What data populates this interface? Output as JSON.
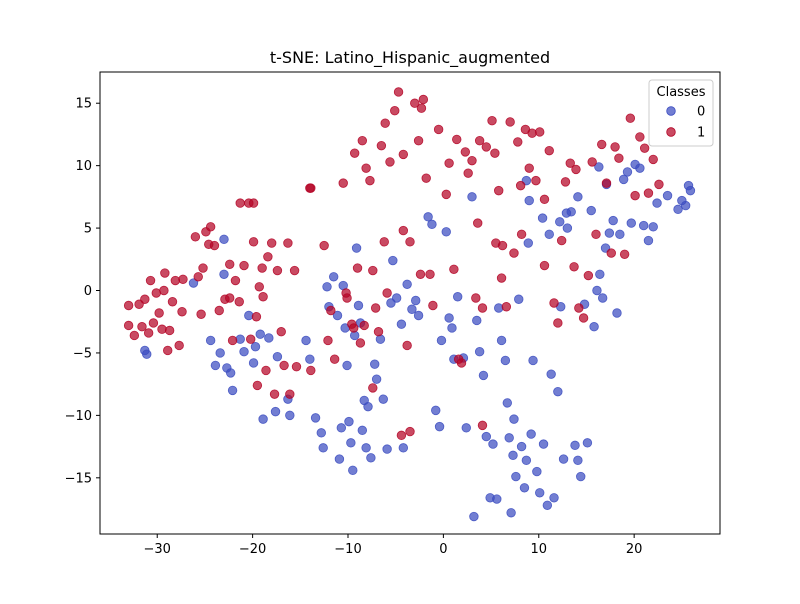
{
  "chart_data": {
    "type": "scatter",
    "title": "t-SNE: Latino_Hispanic_augmented",
    "xlabel": "",
    "ylabel": "",
    "xlim": [
      -36,
      29
    ],
    "ylim": [
      -19.5,
      17.5
    ],
    "xticks": [
      -30,
      -20,
      -10,
      0,
      10,
      20
    ],
    "yticks": [
      -15,
      -10,
      -5,
      0,
      5,
      10,
      15
    ],
    "grid": false,
    "legend": {
      "title": "Classes",
      "placement": "top-right"
    },
    "series": [
      {
        "name": "0",
        "color": "#3b4cc0",
        "points": [
          [
            -31.3,
            -4.8
          ],
          [
            -31.1,
            -5.1
          ],
          [
            -26.2,
            0.6
          ],
          [
            -24.4,
            -4.0
          ],
          [
            -23.9,
            -6.0
          ],
          [
            -23.4,
            -5.0
          ],
          [
            -23.0,
            1.3
          ],
          [
            -22.7,
            -6.2
          ],
          [
            -22.3,
            -6.6
          ],
          [
            -22.1,
            -8.0
          ],
          [
            -23.0,
            4.1
          ],
          [
            -21.3,
            -3.9
          ],
          [
            -20.9,
            -4.9
          ],
          [
            -20.4,
            -2.0
          ],
          [
            -19.9,
            -5.8
          ],
          [
            -19.7,
            -4.5
          ],
          [
            -19.2,
            -3.5
          ],
          [
            -18.9,
            -10.3
          ],
          [
            -18.3,
            -3.8
          ],
          [
            -17.6,
            -9.7
          ],
          [
            -17.4,
            -5.3
          ],
          [
            -16.3,
            -8.7
          ],
          [
            -16.1,
            -10.0
          ],
          [
            -14.4,
            -4.0
          ],
          [
            -14.0,
            -5.5
          ],
          [
            -13.4,
            -10.2
          ],
          [
            -12.8,
            -11.4
          ],
          [
            -12.6,
            -12.6
          ],
          [
            -12.2,
            0.3
          ],
          [
            -12.0,
            -1.3
          ],
          [
            -11.5,
            1.1
          ],
          [
            -11.1,
            -2.0
          ],
          [
            -10.9,
            -13.5
          ],
          [
            -10.7,
            -11.0
          ],
          [
            -10.5,
            0.4
          ],
          [
            -10.3,
            -3.0
          ],
          [
            -10.1,
            -6.0
          ],
          [
            -9.9,
            -10.5
          ],
          [
            -9.7,
            -12.2
          ],
          [
            -9.5,
            -14.4
          ],
          [
            -9.3,
            -3.6
          ],
          [
            -9.1,
            3.4
          ],
          [
            -8.9,
            -1.2
          ],
          [
            -8.7,
            -2.6
          ],
          [
            -8.5,
            -11.2
          ],
          [
            -8.3,
            -8.8
          ],
          [
            -8.1,
            -12.6
          ],
          [
            -7.9,
            -9.3
          ],
          [
            -7.6,
            -13.4
          ],
          [
            -7.2,
            -5.9
          ],
          [
            -7.0,
            -7.1
          ],
          [
            -6.6,
            -3.9
          ],
          [
            -6.3,
            -8.7
          ],
          [
            -5.9,
            -12.7
          ],
          [
            -5.5,
            -1.0
          ],
          [
            -5.3,
            2.4
          ],
          [
            -4.9,
            -0.6
          ],
          [
            -4.4,
            -2.7
          ],
          [
            -4.2,
            -12.6
          ],
          [
            -3.8,
            0.5
          ],
          [
            -3.3,
            -1.5
          ],
          [
            -2.9,
            -0.8
          ],
          [
            -2.6,
            -2.0
          ],
          [
            -1.6,
            5.9
          ],
          [
            -1.2,
            5.3
          ],
          [
            -0.8,
            -9.6
          ],
          [
            -0.4,
            -10.9
          ],
          [
            -0.2,
            -4.0
          ],
          [
            0.3,
            4.7
          ],
          [
            0.6,
            -2.2
          ],
          [
            0.9,
            -3.0
          ],
          [
            1.1,
            -5.5
          ],
          [
            1.5,
            -0.5
          ],
          [
            2.1,
            -5.4
          ],
          [
            2.4,
            -11.0
          ],
          [
            3.0,
            7.5
          ],
          [
            3.2,
            -18.1
          ],
          [
            3.5,
            -2.4
          ],
          [
            3.8,
            -4.9
          ],
          [
            4.2,
            -6.8
          ],
          [
            4.5,
            -11.7
          ],
          [
            4.9,
            -16.6
          ],
          [
            5.2,
            -12.3
          ],
          [
            5.6,
            -16.7
          ],
          [
            5.8,
            -1.4
          ],
          [
            6.1,
            -4.0
          ],
          [
            6.5,
            -5.6
          ],
          [
            6.9,
            -11.8
          ],
          [
            7.1,
            -17.8
          ],
          [
            7.3,
            -13.2
          ],
          [
            7.6,
            -14.9
          ],
          [
            7.9,
            -0.7
          ],
          [
            8.2,
            -12.5
          ],
          [
            8.5,
            -15.8
          ],
          [
            8.7,
            -13.6
          ],
          [
            8.9,
            3.8
          ],
          [
            9.2,
            -11.5
          ],
          [
            9.4,
            -5.6
          ],
          [
            9.8,
            -14.5
          ],
          [
            10.1,
            -16.2
          ],
          [
            10.5,
            -12.3
          ],
          [
            10.9,
            -17.2
          ],
          [
            11.3,
            -6.7
          ],
          [
            11.6,
            -16.6
          ],
          [
            12.0,
            -8.1
          ],
          [
            12.3,
            -1.3
          ],
          [
            12.6,
            -13.5
          ],
          [
            13.0,
            5.0
          ],
          [
            13.4,
            6.3
          ],
          [
            13.8,
            -12.4
          ],
          [
            14.1,
            -13.6
          ],
          [
            14.4,
            -14.9
          ],
          [
            14.8,
            -1.1
          ],
          [
            15.1,
            -12.2
          ],
          [
            15.5,
            6.4
          ],
          [
            15.8,
            -2.9
          ],
          [
            16.1,
            0.0
          ],
          [
            16.4,
            1.3
          ],
          [
            16.7,
            -0.6
          ],
          [
            17.0,
            3.4
          ],
          [
            17.4,
            4.6
          ],
          [
            17.8,
            5.6
          ],
          [
            18.2,
            -1.8
          ],
          [
            18.5,
            4.5
          ],
          [
            18.9,
            8.9
          ],
          [
            19.3,
            9.5
          ],
          [
            19.7,
            5.4
          ],
          [
            20.1,
            10.1
          ],
          [
            20.6,
            9.8
          ],
          [
            21.0,
            5.2
          ],
          [
            21.5,
            4.0
          ],
          [
            22.0,
            5.1
          ],
          [
            22.4,
            7.0
          ],
          [
            23.5,
            7.6
          ],
          [
            24.6,
            6.5
          ],
          [
            25.0,
            7.2
          ],
          [
            25.4,
            6.8
          ],
          [
            25.7,
            8.4
          ],
          [
            25.9,
            8.0
          ],
          [
            16.3,
            9.9
          ],
          [
            17.1,
            8.5
          ],
          [
            14.1,
            7.5
          ],
          [
            12.9,
            6.2
          ],
          [
            12.2,
            5.5
          ],
          [
            11.1,
            4.5
          ],
          [
            10.4,
            5.8
          ],
          [
            9.0,
            7.2
          ],
          [
            8.7,
            8.8
          ],
          [
            6.7,
            -9.0
          ],
          [
            7.4,
            -10.3
          ]
        ]
      },
      {
        "name": "1",
        "color": "#b40426",
        "points": [
          [
            -33.0,
            -1.2
          ],
          [
            -33.0,
            -2.8
          ],
          [
            -32.4,
            -3.6
          ],
          [
            -31.9,
            -1.1
          ],
          [
            -31.6,
            -2.9
          ],
          [
            -31.3,
            -0.7
          ],
          [
            -30.9,
            -3.4
          ],
          [
            -30.7,
            0.8
          ],
          [
            -30.4,
            -2.6
          ],
          [
            -30.1,
            -0.2
          ],
          [
            -29.8,
            -1.8
          ],
          [
            -29.5,
            -3.1
          ],
          [
            -29.3,
            0.0
          ],
          [
            -29.2,
            1.4
          ],
          [
            -28.9,
            -4.8
          ],
          [
            -28.4,
            -0.9
          ],
          [
            -28.1,
            0.8
          ],
          [
            -27.7,
            -4.4
          ],
          [
            -27.4,
            -1.7
          ],
          [
            -27.3,
            0.9
          ],
          [
            -26.0,
            4.3
          ],
          [
            -25.4,
            -1.9
          ],
          [
            -25.2,
            1.8
          ],
          [
            -24.9,
            4.7
          ],
          [
            -24.6,
            3.7
          ],
          [
            -24.4,
            5.1
          ],
          [
            -24.0,
            3.6
          ],
          [
            -23.5,
            -1.6
          ],
          [
            -22.9,
            -0.7
          ],
          [
            -22.4,
            -0.6
          ],
          [
            -22.1,
            -4.0
          ],
          [
            -21.8,
            0.8
          ],
          [
            -21.4,
            -0.9
          ],
          [
            -21.3,
            7.0
          ],
          [
            -20.9,
            2.0
          ],
          [
            -20.4,
            7.0
          ],
          [
            -20.2,
            -3.9
          ],
          [
            -19.9,
            7.0
          ],
          [
            -19.9,
            3.9
          ],
          [
            -19.6,
            -2.1
          ],
          [
            -19.5,
            -7.6
          ],
          [
            -19.3,
            0.3
          ],
          [
            -19.0,
            1.8
          ],
          [
            -18.9,
            -0.5
          ],
          [
            -18.6,
            -6.4
          ],
          [
            -18.4,
            2.7
          ],
          [
            -18.0,
            3.8
          ],
          [
            -17.7,
            -8.3
          ],
          [
            -17.4,
            1.6
          ],
          [
            -17.0,
            -3.3
          ],
          [
            -16.7,
            -6.0
          ],
          [
            -16.3,
            3.8
          ],
          [
            -16.1,
            -8.3
          ],
          [
            -15.6,
            1.6
          ],
          [
            -14.0,
            8.2
          ],
          [
            -13.9,
            -6.4
          ],
          [
            -12.5,
            3.6
          ],
          [
            -12.1,
            -4.0
          ],
          [
            -11.4,
            -5.5
          ],
          [
            -10.5,
            8.6
          ],
          [
            -10.1,
            -0.6
          ],
          [
            -9.6,
            -2.7
          ],
          [
            -9.3,
            11.0
          ],
          [
            -9.0,
            1.8
          ],
          [
            -8.7,
            -4.2
          ],
          [
            -8.5,
            12.0
          ],
          [
            -8.3,
            -2.8
          ],
          [
            -8.1,
            9.8
          ],
          [
            -7.7,
            8.8
          ],
          [
            -7.4,
            1.6
          ],
          [
            -7.1,
            -1.4
          ],
          [
            -6.8,
            -3.3
          ],
          [
            -6.5,
            11.6
          ],
          [
            -6.2,
            3.9
          ],
          [
            -5.9,
            -0.2
          ],
          [
            -5.6,
            10.3
          ],
          [
            -5.1,
            14.4
          ],
          [
            -4.7,
            15.9
          ],
          [
            -4.4,
            -11.6
          ],
          [
            -4.2,
            10.9
          ],
          [
            -3.8,
            -4.4
          ],
          [
            -3.5,
            3.9
          ],
          [
            -3.0,
            15.0
          ],
          [
            -2.6,
            12.0
          ],
          [
            -2.3,
            14.6
          ],
          [
            -2.1,
            15.3
          ],
          [
            -1.8,
            9.0
          ],
          [
            -1.4,
            1.3
          ],
          [
            -1.1,
            -1.2
          ],
          [
            -0.5,
            12.9
          ],
          [
            0.6,
            10.2
          ],
          [
            1.1,
            1.7
          ],
          [
            1.4,
            12.1
          ],
          [
            1.9,
            -5.8
          ],
          [
            2.3,
            11.1
          ],
          [
            2.6,
            9.4
          ],
          [
            3.0,
            10.4
          ],
          [
            3.4,
            -0.6
          ],
          [
            3.8,
            12.0
          ],
          [
            4.1,
            -1.4
          ],
          [
            4.5,
            11.5
          ],
          [
            5.1,
            13.6
          ],
          [
            5.5,
            3.8
          ],
          [
            5.8,
            8.0
          ],
          [
            6.1,
            1.0
          ],
          [
            6.6,
            -1.3
          ],
          [
            7.0,
            13.5
          ],
          [
            7.4,
            3.0
          ],
          [
            7.8,
            11.9
          ],
          [
            8.2,
            4.5
          ],
          [
            8.6,
            12.9
          ],
          [
            9.0,
            9.8
          ],
          [
            9.3,
            12.6
          ],
          [
            9.7,
            8.8
          ],
          [
            10.1,
            12.7
          ],
          [
            10.6,
            2.0
          ],
          [
            11.1,
            11.2
          ],
          [
            11.6,
            -1.0
          ],
          [
            12.0,
            -2.6
          ],
          [
            12.4,
            4.0
          ],
          [
            12.8,
            8.7
          ],
          [
            13.3,
            10.2
          ],
          [
            13.7,
            1.9
          ],
          [
            14.2,
            -1.4
          ],
          [
            14.7,
            -2.2
          ],
          [
            15.2,
            1.2
          ],
          [
            15.6,
            10.3
          ],
          [
            16.0,
            4.5
          ],
          [
            16.6,
            11.7
          ],
          [
            17.1,
            8.6
          ],
          [
            17.6,
            3.0
          ],
          [
            18.0,
            11.5
          ],
          [
            18.4,
            10.6
          ],
          [
            19.0,
            2.9
          ],
          [
            19.6,
            13.8
          ],
          [
            20.1,
            7.6
          ],
          [
            20.6,
            12.3
          ],
          [
            21.1,
            11.4
          ],
          [
            21.5,
            7.8
          ],
          [
            22.0,
            10.5
          ],
          [
            22.6,
            8.5
          ],
          [
            -6.1,
            13.4
          ],
          [
            -4.2,
            4.8
          ],
          [
            -2.4,
            1.3
          ],
          [
            0.3,
            7.7
          ],
          [
            3.6,
            5.4
          ],
          [
            8.1,
            8.4
          ],
          [
            10.6,
            7.3
          ],
          [
            13.9,
            9.7
          ],
          [
            5.4,
            11.0
          ],
          [
            -13.9,
            8.2
          ],
          [
            -10.2,
            -0.2
          ],
          [
            -9.4,
            -3.0
          ],
          [
            -7.4,
            -7.8
          ],
          [
            -3.5,
            -11.3
          ],
          [
            1.6,
            -5.5
          ],
          [
            4.1,
            -10.8
          ],
          [
            6.2,
            3.6
          ],
          [
            -11.8,
            -1.6
          ],
          [
            -15.4,
            -6.1
          ],
          [
            -22.4,
            2.1
          ],
          [
            -25.7,
            1.1
          ],
          [
            -28.7,
            -3.2
          ]
        ]
      }
    ]
  }
}
